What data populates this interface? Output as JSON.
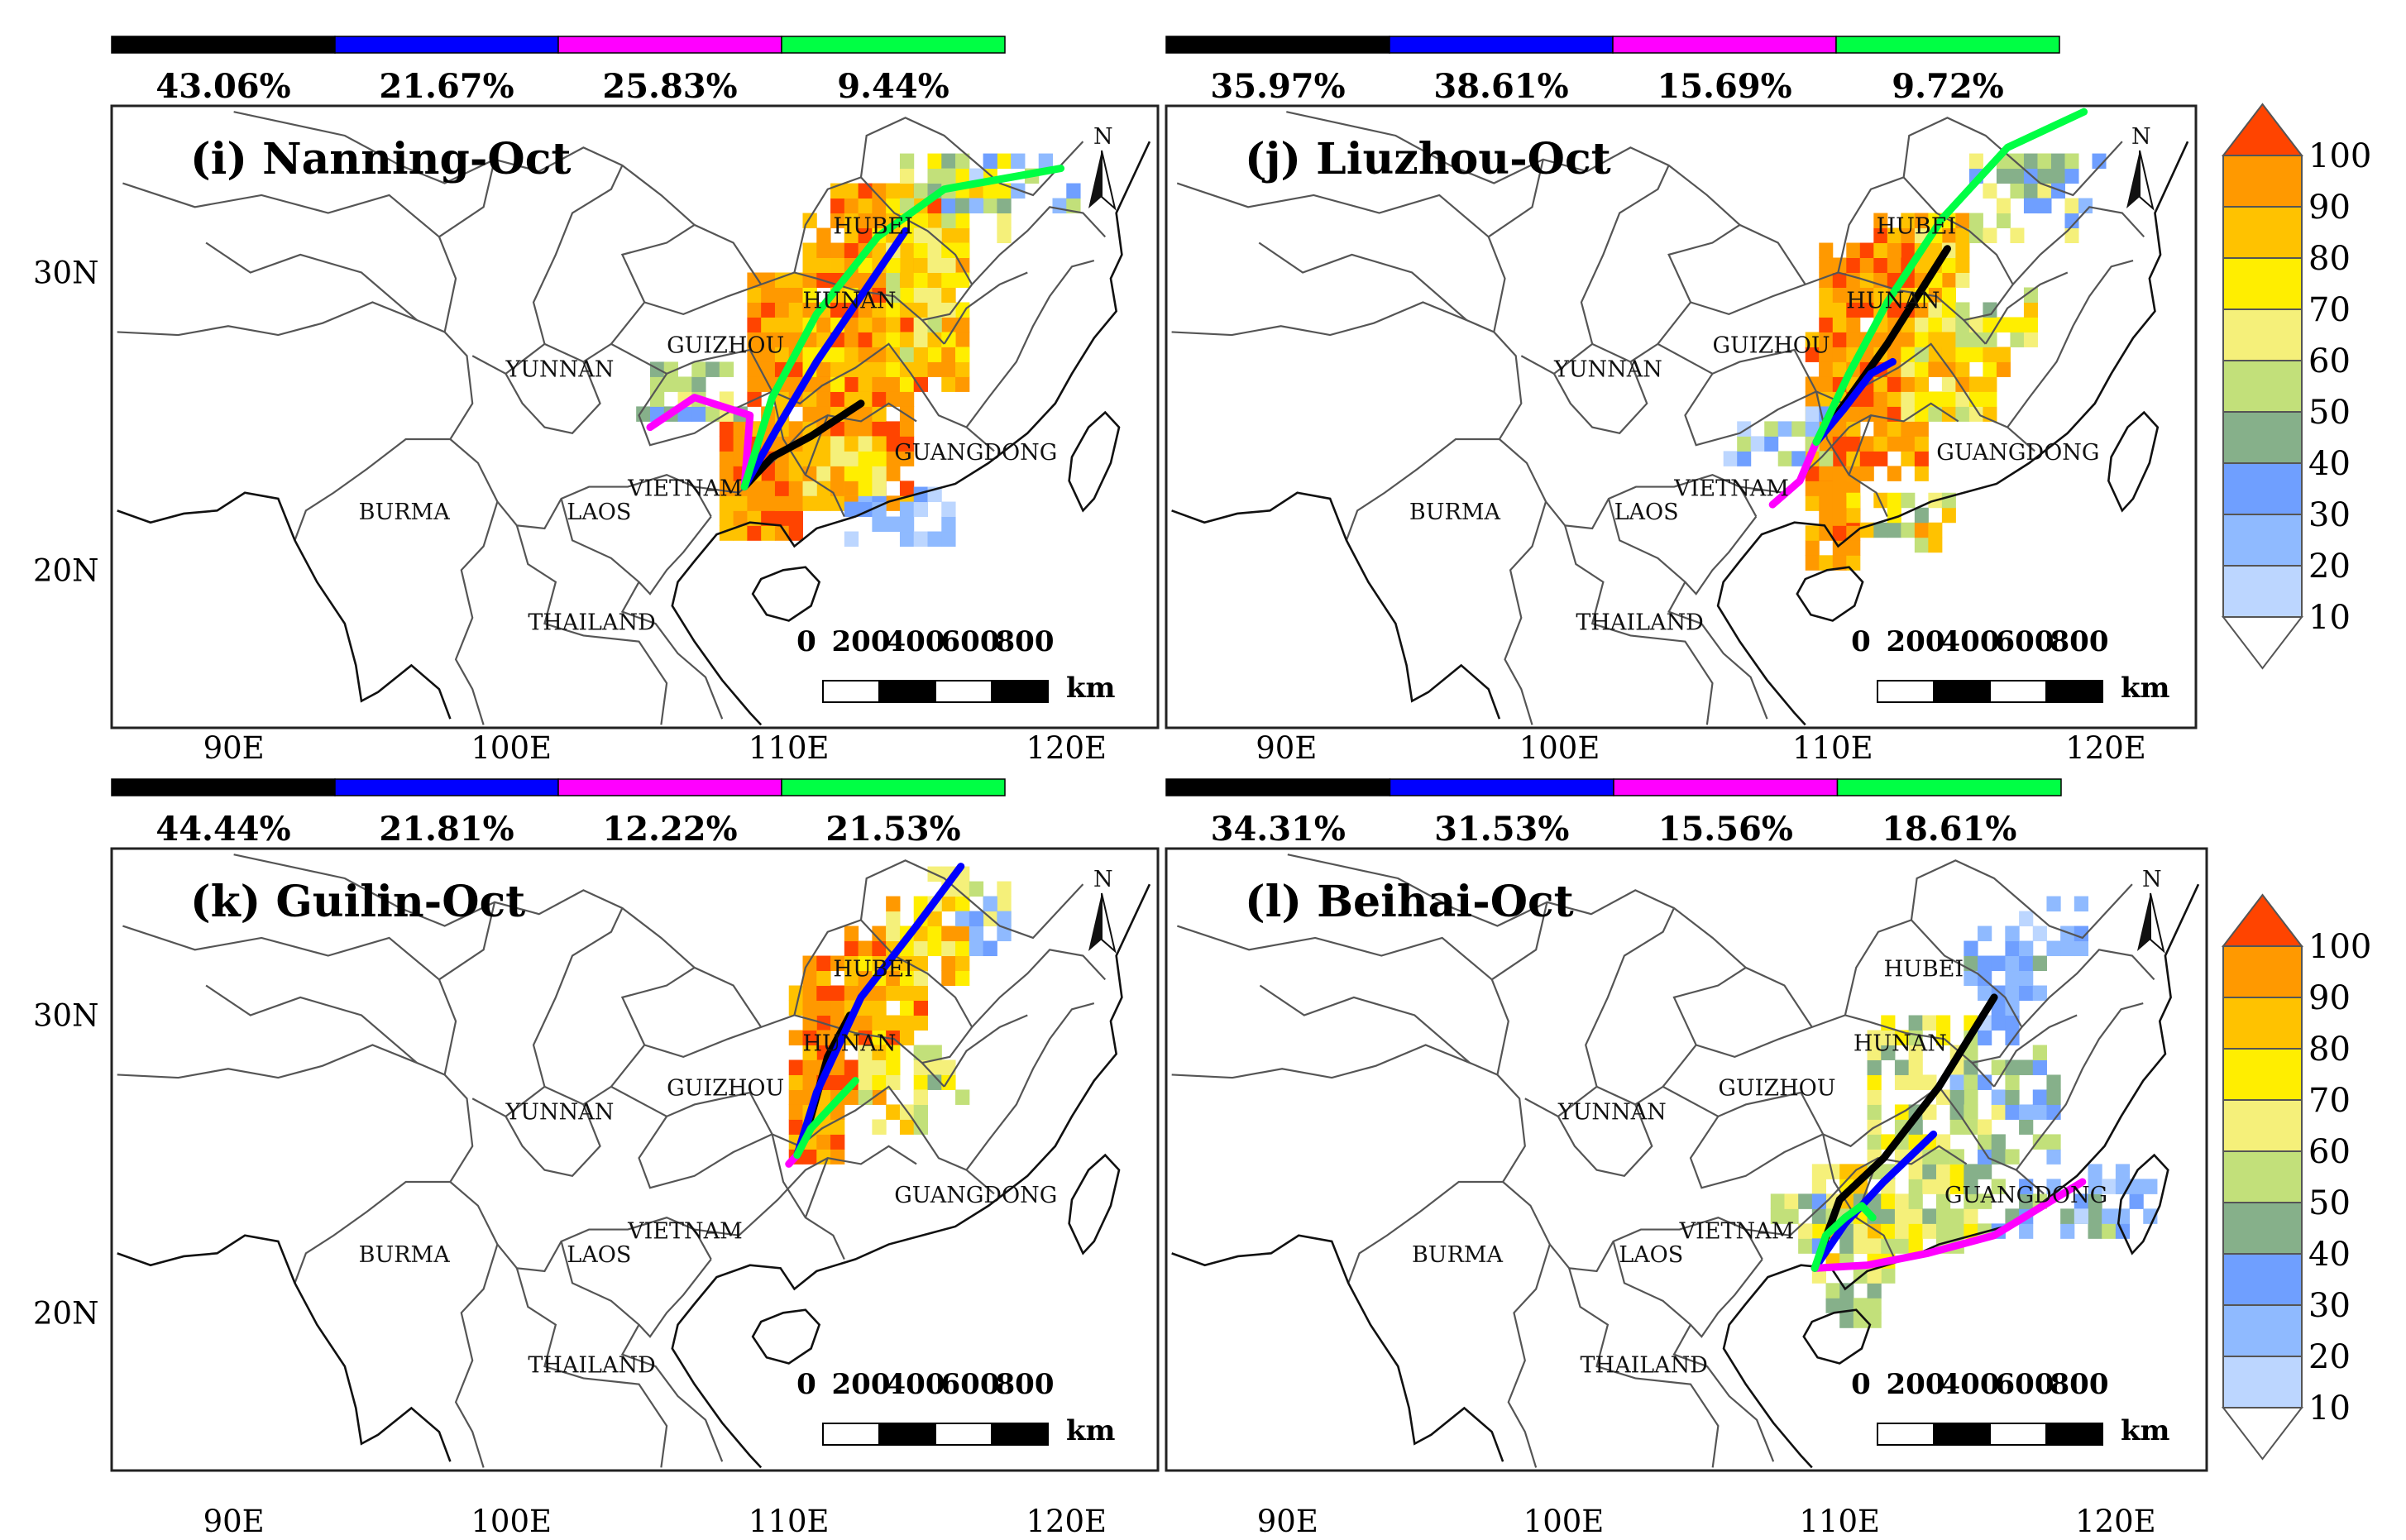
{
  "colors": {
    "series": [
      "#000000",
      "#0000ff",
      "#ff00ff",
      "#00ff44"
    ],
    "colorbar": [
      "#ffffff",
      "#bcd6ff",
      "#8fbaff",
      "#6f9fff",
      "#86b08a",
      "#c2e07a",
      "#f5f07a",
      "#ffee00",
      "#ffc200",
      "#ff9900",
      "#ff4400"
    ]
  },
  "lon_ticks": [
    "90E",
    "100E",
    "110E",
    "120E"
  ],
  "lat_ticks": [
    "30N",
    "20N"
  ],
  "colorbar": {
    "labels": [
      "100",
      "90",
      "80",
      "70",
      "60",
      "50",
      "40",
      "30",
      "20",
      "10"
    ]
  },
  "panels": [
    {
      "title": "(i) Nanning-Oct",
      "percentages": [
        "43.06%",
        "21.67%",
        "25.83%",
        "9.44%"
      ],
      "regions": [
        "HUBEI",
        "HUNAN",
        "GUIZHOU",
        "YUNNAN",
        "GUANGDONG",
        "BURMA",
        "VIETNAM",
        "LAOS",
        "THAILAND"
      ],
      "scalebar": {
        "labels": [
          "0",
          "200",
          "400",
          "600",
          "800"
        ],
        "unit": "km"
      },
      "north": "N"
    },
    {
      "title": "(j) Liuzhou-Oct",
      "percentages": [
        "35.97%",
        "38.61%",
        "15.69%",
        "9.72%"
      ],
      "regions": [
        "HUBEI",
        "HUNAN",
        "GUIZHOU",
        "YUNNAN",
        "GUANGDONG",
        "BURMA",
        "VIETNAM",
        "LAOS",
        "THAILAND"
      ],
      "scalebar": {
        "labels": [
          "0",
          "200",
          "400",
          "600",
          "800"
        ],
        "unit": "km"
      },
      "north": "N"
    },
    {
      "title": "(k) Guilin-Oct",
      "percentages": [
        "44.44%",
        "21.81%",
        "12.22%",
        "21.53%"
      ],
      "regions": [
        "HUBEI",
        "HUNAN",
        "GUIZHOU",
        "YUNNAN",
        "GUANGDONG",
        "BURMA",
        "VIETNAM",
        "LAOS",
        "THAILAND"
      ],
      "scalebar": {
        "labels": [
          "0",
          "200",
          "400",
          "600",
          "800"
        ],
        "unit": "km"
      },
      "north": "N"
    },
    {
      "title": "(l) Beihai-Oct",
      "percentages": [
        "34.31%",
        "31.53%",
        "15.56%",
        "18.61%"
      ],
      "regions": [
        "HUBEI",
        "HUNAN",
        "GUIZHOU",
        "YUNNAN",
        "GUANGDONG",
        "BURMA",
        "VIETNAM",
        "LAOS",
        "THAILAND"
      ],
      "scalebar": {
        "labels": [
          "0",
          "200",
          "400",
          "600",
          "800"
        ],
        "unit": "km"
      },
      "north": "N"
    }
  ]
}
